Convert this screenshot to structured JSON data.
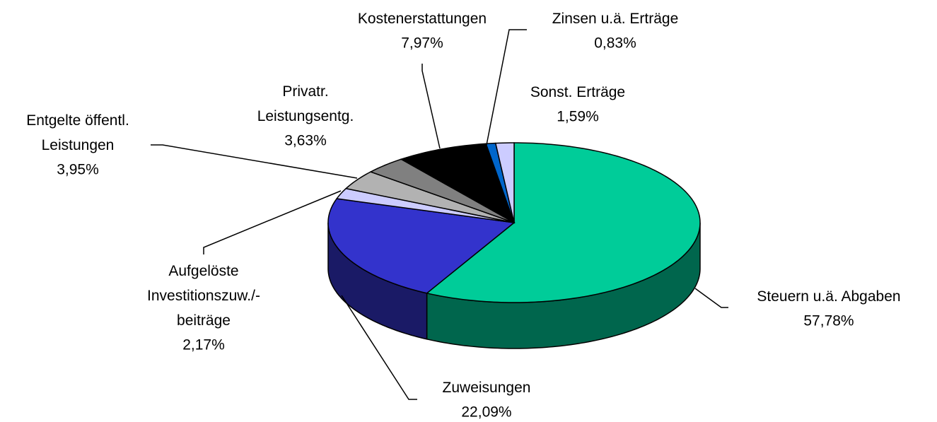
{
  "chart_data": {
    "type": "pie3d",
    "categories": [
      "Steuern u.ä. Abgaben",
      "Zuweisungen",
      "Aufgelöste\nInvestitionszuw./-\nbeiträge",
      "Entgelte öffentl.\nLeistungen",
      "Privatr.\nLeistungsentg.",
      "Kostenerstattungen",
      "Zinsen u.ä. Erträge",
      "Sonst. Erträge"
    ],
    "values": [
      57.78,
      22.09,
      2.17,
      3.95,
      3.63,
      7.97,
      0.83,
      1.59
    ],
    "value_labels": [
      "57,78%",
      "22,09%",
      "2,17%",
      "3,95%",
      "3,63%",
      "7,97%",
      "0,83%",
      "1,59%"
    ],
    "colors": [
      "#00cc99",
      "#3333cc",
      "#ccccff",
      "#b2b2b2",
      "#808080",
      "#000000",
      "#0066cc",
      "#ccccff"
    ]
  }
}
